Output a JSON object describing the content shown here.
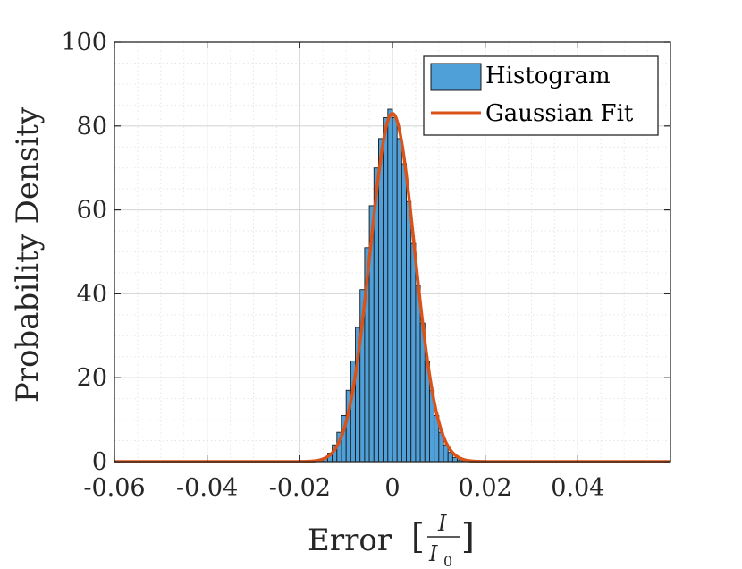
{
  "chart_data": {
    "type": "bar",
    "title": "",
    "xlabel": "Error",
    "xlabel_fraction": {
      "numerator": "I",
      "denominator_base": "I",
      "denominator_subscript": "0"
    },
    "ylabel": "Probability Density",
    "xlim": [
      -0.06,
      0.06
    ],
    "ylim": [
      0,
      100
    ],
    "xticks": [
      -0.06,
      -0.04,
      -0.02,
      0,
      0.02,
      0.04
    ],
    "xtick_labels": [
      "-0.06",
      "-0.04",
      "-0.02",
      "0",
      "0.02",
      "0.04"
    ],
    "yticks": [
      0,
      20,
      40,
      60,
      80,
      100
    ],
    "ytick_labels": [
      "0",
      "20",
      "40",
      "60",
      "80",
      "100"
    ],
    "grid": true,
    "minor_grid": true,
    "legend_position": "top-right",
    "series": [
      {
        "name": "Histogram",
        "kind": "histogram",
        "color": "#4f9fd9",
        "edge_color": "#1a1a1a",
        "bin_width": 0.001,
        "bin_start": -0.016,
        "values": [
          0.3,
          0.8,
          2,
          4,
          7,
          11,
          17,
          24,
          32,
          41,
          51,
          61,
          70,
          77,
          82,
          84,
          82,
          77,
          71,
          62,
          52,
          42,
          33,
          24,
          17,
          11,
          7,
          4,
          2.2,
          1,
          0.4,
          0.1
        ]
      },
      {
        "name": "Gaussian Fit",
        "kind": "line",
        "color": "#d95319",
        "mu": 0.0,
        "sigma": 0.0048,
        "peak": 83
      }
    ]
  }
}
